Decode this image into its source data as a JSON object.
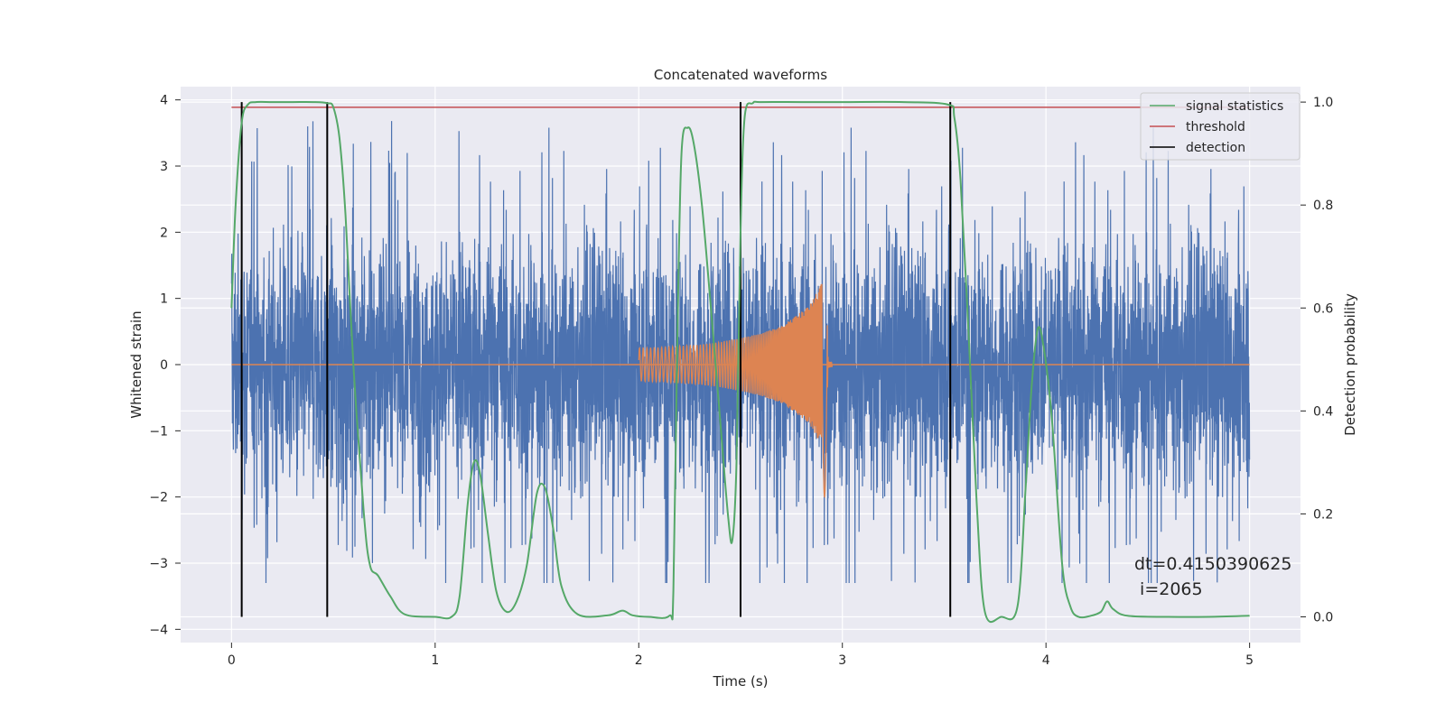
{
  "chart_data": {
    "type": "line",
    "title": "Concatenated waveforms",
    "xlabel": "Time (s)",
    "ylabel": "Whitened strain",
    "ylabel_right": "Detection probability",
    "xlim": [
      -0.25,
      5.25
    ],
    "ylim": [
      -4.2,
      4.2
    ],
    "ylim_right": [
      -0.05,
      1.03
    ],
    "x_ticks": [
      0,
      1,
      2,
      3,
      4,
      5
    ],
    "y_ticks": [
      -4,
      -3,
      -2,
      -1,
      0,
      1,
      2,
      3,
      4
    ],
    "y_ticks_right": [
      0.0,
      0.2,
      0.4,
      0.6,
      0.8,
      1.0
    ],
    "grid": true,
    "legend_position": "top-right",
    "series": [
      {
        "name": "signal statistics",
        "axis": "right",
        "color": "#55a868",
        "x": [
          0.0,
          0.02,
          0.05,
          0.08,
          0.12,
          0.2,
          0.3,
          0.4,
          0.47,
          0.5,
          0.53,
          0.56,
          0.6,
          0.65,
          0.68,
          0.72,
          0.78,
          0.85,
          1.0,
          1.08,
          1.12,
          1.16,
          1.19,
          1.22,
          1.26,
          1.3,
          1.35,
          1.4,
          1.45,
          1.5,
          1.54,
          1.58,
          1.62,
          1.7,
          1.85,
          1.92,
          1.97,
          2.05,
          2.15,
          2.17,
          2.19,
          2.21,
          2.24,
          2.27,
          2.31,
          2.35,
          2.4,
          2.44,
          2.46,
          2.48,
          2.5,
          2.52,
          2.56,
          2.6,
          2.8,
          3.0,
          3.3,
          3.52,
          3.55,
          3.58,
          3.62,
          3.66,
          3.7,
          3.78,
          3.86,
          3.9,
          3.93,
          3.96,
          3.99,
          4.03,
          4.08,
          4.12,
          4.16,
          4.22,
          4.27,
          4.3,
          4.33,
          4.4,
          4.6,
          4.8,
          5.0
        ],
        "values": [
          0.6,
          0.8,
          0.96,
          0.995,
          1.0,
          1.0,
          1.0,
          1.0,
          0.998,
          0.99,
          0.93,
          0.78,
          0.48,
          0.2,
          0.1,
          0.08,
          0.04,
          0.005,
          0.0,
          0.0,
          0.04,
          0.22,
          0.3,
          0.28,
          0.16,
          0.05,
          0.01,
          0.03,
          0.1,
          0.24,
          0.25,
          0.17,
          0.06,
          0.005,
          0.003,
          0.012,
          0.003,
          0.0,
          0.002,
          0.05,
          0.55,
          0.9,
          0.95,
          0.92,
          0.8,
          0.62,
          0.38,
          0.19,
          0.15,
          0.3,
          0.75,
          0.97,
          0.998,
          1.0,
          1.0,
          1.0,
          1.0,
          0.995,
          0.97,
          0.85,
          0.55,
          0.22,
          0.01,
          0.0,
          0.02,
          0.25,
          0.45,
          0.56,
          0.52,
          0.38,
          0.1,
          0.02,
          0.0,
          0.002,
          0.01,
          0.03,
          0.015,
          0.002,
          0.0,
          0.0,
          0.002
        ]
      },
      {
        "name": "threshold",
        "axis": "right",
        "color": "#c44e52",
        "x": [
          0.0,
          5.0
        ],
        "values": [
          0.99,
          0.99
        ]
      },
      {
        "name": "detection",
        "axis": "right",
        "color": "#000000",
        "segments_x": [
          0.05,
          0.47,
          2.5,
          3.53
        ],
        "y_range": [
          0.0,
          1.0
        ]
      },
      {
        "axis": "left",
        "color": "#4c72b0",
        "description_noise_range": [
          -3.3,
          3.85
        ],
        "x_range": [
          0.0,
          5.0
        ]
      },
      {
        "axis": "left",
        "color": "#dd8452",
        "chirp_x": [
          2.0,
          2.1,
          2.2,
          2.3,
          2.4,
          2.5,
          2.6,
          2.7,
          2.8,
          2.85,
          2.9,
          2.92,
          2.93,
          3.0,
          5.0
        ],
        "chirp_amplitude": [
          0.25,
          0.26,
          0.28,
          0.3,
          0.34,
          0.4,
          0.47,
          0.58,
          0.8,
          0.95,
          1.25,
          1.3,
          0.05,
          0.0,
          0.0
        ]
      }
    ],
    "annotation": {
      "line1": "dt=0.4150390625",
      "line2": " i=2065"
    }
  }
}
